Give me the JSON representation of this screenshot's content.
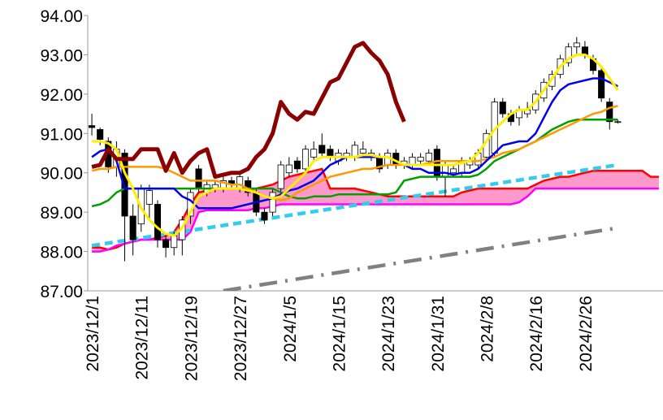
{
  "chart_data": {
    "type": "candlestick",
    "categories": [
      "2023/12/1",
      null,
      null,
      null,
      null,
      null,
      "2023/12/11",
      null,
      null,
      null,
      null,
      null,
      "2023/12/19",
      null,
      null,
      null,
      null,
      null,
      "2023/12/27",
      null,
      null,
      null,
      null,
      null,
      "2024/1/5",
      null,
      null,
      null,
      null,
      null,
      "2024/1/15",
      null,
      null,
      null,
      null,
      null,
      "2024/1/23",
      null,
      null,
      null,
      null,
      null,
      "2024/1/31",
      null,
      null,
      null,
      null,
      null,
      "2024/2/8",
      null,
      null,
      null,
      null,
      null,
      "2024/2/16",
      null,
      null,
      null,
      null,
      null,
      "2024/2/26",
      null,
      null,
      null,
      null,
      null,
      null,
      null,
      null,
      null
    ],
    "ylim": [
      87,
      94
    ],
    "yticks": [
      {
        "value": 87,
        "label": "87.00"
      },
      {
        "value": 88,
        "label": "88.00"
      },
      {
        "value": 89,
        "label": "89.00"
      },
      {
        "value": 90,
        "label": "90.00"
      },
      {
        "value": 91,
        "label": "91.00"
      },
      {
        "value": 92,
        "label": "92.00"
      },
      {
        "value": 93,
        "label": "93.00"
      },
      {
        "value": 94,
        "label": "94.00"
      }
    ],
    "open": [
      91.2,
      91.1,
      90.8,
      90.15,
      90.5,
      88.9,
      88.7,
      89.2,
      89.2,
      88.3,
      88.1,
      88.3,
      88.9,
      90.1,
      89.5,
      89.6,
      89.6,
      89.8,
      89.6,
      89.8,
      89.5,
      89.0,
      89.0,
      89.6,
      90.0,
      90.3,
      90.1,
      90.4,
      90.7,
      90.6,
      90.3,
      90.4,
      90.4,
      90.5,
      90.4,
      90.4,
      90.2,
      90.5,
      90.2,
      90.2,
      90.3,
      90.3,
      90.6,
      89.9,
      90.0,
      90.0,
      90.2,
      90.2,
      90.4,
      90.5,
      91.8,
      91.5,
      91.4,
      91.5,
      91.6,
      91.9,
      92.2,
      92.5,
      92.8,
      93.2,
      93.2,
      92.9,
      92.6,
      91.8,
      91.3,
      null,
      null,
      null,
      null,
      null
    ],
    "high": [
      91.5,
      91.15,
      90.9,
      90.8,
      90.6,
      89.2,
      89.7,
      89.7,
      89.3,
      88.4,
      88.5,
      88.9,
      89.6,
      90.2,
      89.8,
      89.8,
      89.9,
      89.9,
      90.0,
      89.9,
      89.6,
      89.1,
      89.6,
      90.3,
      90.4,
      90.4,
      90.7,
      90.8,
      91.0,
      90.7,
      90.6,
      90.6,
      90.8,
      90.8,
      90.6,
      90.5,
      90.6,
      90.6,
      90.4,
      90.5,
      90.5,
      90.6,
      90.7,
      90.3,
      90.2,
      90.4,
      90.4,
      90.6,
      91.1,
      91.9,
      91.9,
      91.6,
      91.7,
      91.8,
      92.1,
      92.4,
      92.6,
      93.0,
      93.3,
      93.45,
      93.35,
      93.0,
      92.7,
      91.9,
      91.35,
      null,
      null,
      null,
      null,
      null
    ],
    "low": [
      90.95,
      90.7,
      90.0,
      89.9,
      87.75,
      87.9,
      88.5,
      88.8,
      88.1,
      87.85,
      87.9,
      87.9,
      88.7,
      89.5,
      89.4,
      89.5,
      89.5,
      89.6,
      89.5,
      89.4,
      88.9,
      88.7,
      88.9,
      89.5,
      89.9,
      90.0,
      90.0,
      90.3,
      90.4,
      90.3,
      90.2,
      90.3,
      90.3,
      90.4,
      90.3,
      90.0,
      90.1,
      90.1,
      90.1,
      90.1,
      90.2,
      90.2,
      89.8,
      89.4,
      89.9,
      89.9,
      90.1,
      90.1,
      90.3,
      90.4,
      91.4,
      91.2,
      91.2,
      91.4,
      91.5,
      91.8,
      92.1,
      92.4,
      92.7,
      93.0,
      92.9,
      92.5,
      91.8,
      91.1,
      91.25,
      null,
      null,
      null,
      null,
      null
    ],
    "close": [
      91.15,
      90.85,
      90.15,
      90.6,
      88.9,
      88.3,
      89.6,
      89.55,
      88.3,
      88.1,
      88.4,
      88.8,
      89.5,
      89.6,
      89.7,
      89.7,
      89.8,
      89.7,
      89.9,
      89.5,
      89.0,
      88.8,
      89.5,
      90.2,
      90.2,
      90.1,
      90.6,
      90.6,
      90.5,
      90.4,
      90.5,
      90.5,
      90.7,
      90.6,
      90.5,
      90.1,
      90.5,
      90.2,
      90.3,
      90.4,
      90.4,
      90.5,
      89.9,
      90.2,
      90.1,
      90.3,
      90.3,
      90.5,
      91.0,
      91.8,
      91.5,
      91.3,
      91.6,
      91.6,
      92.0,
      92.3,
      92.5,
      92.9,
      93.2,
      93.3,
      93.0,
      92.6,
      91.9,
      91.3,
      91.3,
      null,
      null,
      null,
      null,
      null
    ],
    "candle_colors": {
      "up": "#ffffff",
      "down": "#000000",
      "outline": "#000000"
    },
    "cloud": {
      "fill": "#ff99cc",
      "upper": {
        "color": "#ff0000",
        "values": [
          88.1,
          88.1,
          88.05,
          88.1,
          88.2,
          88.25,
          88.3,
          88.3,
          88.35,
          88.4,
          88.5,
          88.8,
          89.2,
          89.5,
          89.55,
          89.6,
          89.6,
          89.6,
          89.6,
          89.6,
          89.6,
          89.65,
          89.7,
          89.8,
          89.9,
          89.95,
          90.0,
          90.05,
          90.1,
          89.6,
          89.6,
          89.6,
          89.6,
          89.55,
          89.5,
          89.45,
          89.4,
          89.4,
          89.4,
          89.4,
          89.4,
          89.4,
          89.4,
          89.4,
          89.4,
          89.5,
          89.55,
          89.6,
          89.6,
          89.6,
          89.6,
          89.6,
          89.6,
          89.6,
          89.7,
          89.8,
          89.85,
          89.9,
          89.9,
          89.95,
          90.0,
          90.05,
          90.05,
          90.05,
          90.05,
          90.05,
          90.05,
          90.05,
          89.9,
          89.9
        ]
      },
      "lower": {
        "color": "#ff00ff",
        "values": [
          88.0,
          88.0,
          88.05,
          88.15,
          88.2,
          88.25,
          88.3,
          88.3,
          88.3,
          88.3,
          88.3,
          88.3,
          88.5,
          89.0,
          89.05,
          89.05,
          89.05,
          89.05,
          89.05,
          89.05,
          89.1,
          89.1,
          89.15,
          89.2,
          89.2,
          89.2,
          89.2,
          89.2,
          89.2,
          89.2,
          89.2,
          89.2,
          89.2,
          89.2,
          89.2,
          89.2,
          89.2,
          89.2,
          89.2,
          89.2,
          89.2,
          89.2,
          89.2,
          89.2,
          89.2,
          89.2,
          89.2,
          89.2,
          89.2,
          89.2,
          89.2,
          89.2,
          89.25,
          89.4,
          89.6,
          89.6,
          89.6,
          89.6,
          89.6,
          89.6,
          89.6,
          89.6,
          89.6,
          89.6,
          89.6,
          89.6,
          89.6,
          89.6,
          89.6,
          89.6
        ]
      }
    },
    "series": [
      {
        "color": "#00a000",
        "width": 2.5,
        "values": [
          89.15,
          89.2,
          89.3,
          89.5,
          89.6,
          89.6,
          89.6,
          89.6,
          89.6,
          89.6,
          89.6,
          89.6,
          89.6,
          89.6,
          89.6,
          89.6,
          89.6,
          89.6,
          89.6,
          89.6,
          89.6,
          89.6,
          89.6,
          89.5,
          89.4,
          89.35,
          89.35,
          89.4,
          89.4,
          89.4,
          89.45,
          89.45,
          89.45,
          89.45,
          89.45,
          89.45,
          89.45,
          89.5,
          89.8,
          89.85,
          89.9,
          89.9,
          89.9,
          89.9,
          89.9,
          89.9,
          89.9,
          89.95,
          90.1,
          90.3,
          90.4,
          90.5,
          90.6,
          90.7,
          90.8,
          90.95,
          91.1,
          91.2,
          91.3,
          91.35,
          91.35,
          91.35,
          91.35,
          91.35,
          91.35,
          null,
          null,
          null,
          null,
          null
        ]
      },
      {
        "color": "#ff9900",
        "width": 2.5,
        "values": [
          90.05,
          90.1,
          90.1,
          90.15,
          90.15,
          90.15,
          90.15,
          90.15,
          90.15,
          90.1,
          90.0,
          89.9,
          89.8,
          89.8,
          89.8,
          89.8,
          89.75,
          89.7,
          89.7,
          89.6,
          89.5,
          89.4,
          89.35,
          89.3,
          89.35,
          89.5,
          89.6,
          89.7,
          89.8,
          89.9,
          89.95,
          90.0,
          90.05,
          90.1,
          90.1,
          90.15,
          90.2,
          90.2,
          90.2,
          90.2,
          90.2,
          90.25,
          90.3,
          90.3,
          90.3,
          90.3,
          90.3,
          90.3,
          90.35,
          90.4,
          90.5,
          90.55,
          90.6,
          90.7,
          90.8,
          90.9,
          91.0,
          91.1,
          91.2,
          91.3,
          91.4,
          91.5,
          91.55,
          91.65,
          91.7,
          null,
          null,
          null,
          null,
          null
        ]
      },
      {
        "color": "#0000ee",
        "width": 2.5,
        "values": [
          90.4,
          90.55,
          90.6,
          90.3,
          89.6,
          89.6,
          89.6,
          89.6,
          89.6,
          89.6,
          89.6,
          89.4,
          89.3,
          89.1,
          89.1,
          89.1,
          89.1,
          89.1,
          89.15,
          89.2,
          89.25,
          89.3,
          89.35,
          89.45,
          89.55,
          89.6,
          89.7,
          89.8,
          90.0,
          90.2,
          90.3,
          90.4,
          90.4,
          90.4,
          90.4,
          90.4,
          90.4,
          90.3,
          90.2,
          90.1,
          90.1,
          90.0,
          90.0,
          90.0,
          89.95,
          90.0,
          90.0,
          90.1,
          90.3,
          90.5,
          90.7,
          90.75,
          90.8,
          90.8,
          91.0,
          91.4,
          91.8,
          92.1,
          92.25,
          92.3,
          92.35,
          92.4,
          92.4,
          92.3,
          92.2,
          null,
          null,
          null,
          null,
          null
        ]
      },
      {
        "color": "#ffee00",
        "width": 3,
        "values": [
          90.8,
          90.8,
          90.75,
          90.6,
          90.0,
          89.6,
          89.1,
          88.8,
          88.6,
          88.45,
          88.4,
          88.6,
          89.0,
          89.4,
          89.5,
          89.6,
          89.6,
          89.6,
          89.6,
          89.55,
          89.5,
          89.4,
          89.35,
          89.4,
          89.6,
          89.8,
          90.0,
          90.3,
          90.4,
          90.4,
          90.4,
          90.4,
          90.4,
          90.45,
          90.45,
          90.4,
          90.4,
          90.3,
          90.2,
          90.2,
          90.2,
          90.2,
          90.2,
          90.2,
          90.2,
          90.25,
          90.3,
          90.5,
          90.8,
          91.1,
          91.3,
          91.5,
          91.6,
          91.6,
          91.8,
          92.1,
          92.4,
          92.7,
          92.9,
          93.0,
          93.0,
          92.9,
          92.7,
          92.4,
          92.1,
          null,
          null,
          null,
          null,
          null
        ]
      },
      {
        "color": "#8b0000",
        "width": 5,
        "values": [
          90.15,
          90.2,
          90.6,
          90.35,
          90.35,
          90.35,
          90.6,
          90.6,
          90.6,
          90.05,
          90.5,
          90.0,
          90.3,
          90.5,
          90.6,
          89.9,
          89.95,
          90.0,
          90.0,
          90.1,
          90.4,
          90.6,
          91.0,
          91.8,
          91.5,
          91.35,
          91.55,
          91.5,
          91.9,
          92.3,
          92.4,
          92.8,
          93.2,
          93.3,
          93.05,
          92.85,
          92.5,
          91.8,
          91.3,
          null,
          null,
          null,
          null,
          null,
          null,
          null,
          null,
          null,
          null,
          null,
          null,
          null,
          null,
          null,
          null,
          null,
          null,
          null,
          null,
          null,
          null,
          null,
          null,
          null,
          null,
          null,
          null,
          null,
          null,
          null
        ]
      }
    ],
    "trendlines": [
      {
        "color": "#33ccee",
        "style": "dashed",
        "x": [
          0,
          64
        ],
        "values": [
          88.15,
          90.2
        ]
      },
      {
        "color": "#808080",
        "style": "dash-dot",
        "x": [
          16,
          64
        ],
        "values": [
          87.0,
          88.6
        ]
      }
    ]
  }
}
